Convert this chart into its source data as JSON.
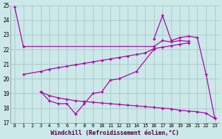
{
  "xlabel": "Windchill (Refroidissement éolien,°C)",
  "bg_color": "#cce8e8",
  "grid_color": "#aacccc",
  "line_color": "#aa00aa",
  "x_ticks": [
    0,
    1,
    2,
    3,
    4,
    5,
    6,
    7,
    8,
    9,
    10,
    11,
    12,
    13,
    14,
    15,
    16,
    17,
    18,
    19,
    20,
    21,
    22,
    23
  ],
  "ylim": [
    17,
    25
  ],
  "yticks": [
    17,
    18,
    19,
    20,
    21,
    22,
    23,
    24,
    25
  ],
  "s1_x": [
    0,
    1,
    16,
    17,
    18,
    19,
    20
  ],
  "s1_y": [
    24.9,
    22.2,
    22.2,
    22.6,
    22.5,
    22.6,
    22.55
  ],
  "s2_x": [
    1,
    3,
    4,
    5,
    6,
    7,
    8,
    9,
    10,
    11,
    12,
    13,
    14,
    15,
    16,
    17,
    18,
    19,
    20
  ],
  "s2_y": [
    20.3,
    20.5,
    20.65,
    20.75,
    20.85,
    20.95,
    21.05,
    21.15,
    21.25,
    21.35,
    21.45,
    21.55,
    21.65,
    21.75,
    22.05,
    22.15,
    22.25,
    22.35,
    22.45
  ],
  "s3_x": [
    3,
    4,
    5,
    6,
    7,
    8,
    9,
    10,
    11,
    12,
    14,
    16
  ],
  "s3_y": [
    19.1,
    18.5,
    18.3,
    18.3,
    17.6,
    18.3,
    19.0,
    19.1,
    19.9,
    20.0,
    20.5,
    22.0
  ],
  "s4_x": [
    3,
    4,
    5,
    6,
    7,
    8,
    9,
    10,
    11,
    12,
    13,
    14,
    15,
    16,
    17,
    18,
    19,
    20,
    21,
    22,
    23
  ],
  "s4_y": [
    19.1,
    18.85,
    18.7,
    18.6,
    18.5,
    18.45,
    18.4,
    18.35,
    18.3,
    18.25,
    18.2,
    18.15,
    18.1,
    18.05,
    18.0,
    17.95,
    17.85,
    17.8,
    17.75,
    17.65,
    17.3
  ],
  "s5_x": [
    16,
    17,
    18,
    19,
    20,
    21,
    22,
    23
  ],
  "s5_y": [
    22.7,
    24.3,
    22.6,
    22.8,
    22.9,
    22.8,
    20.3,
    17.3
  ]
}
